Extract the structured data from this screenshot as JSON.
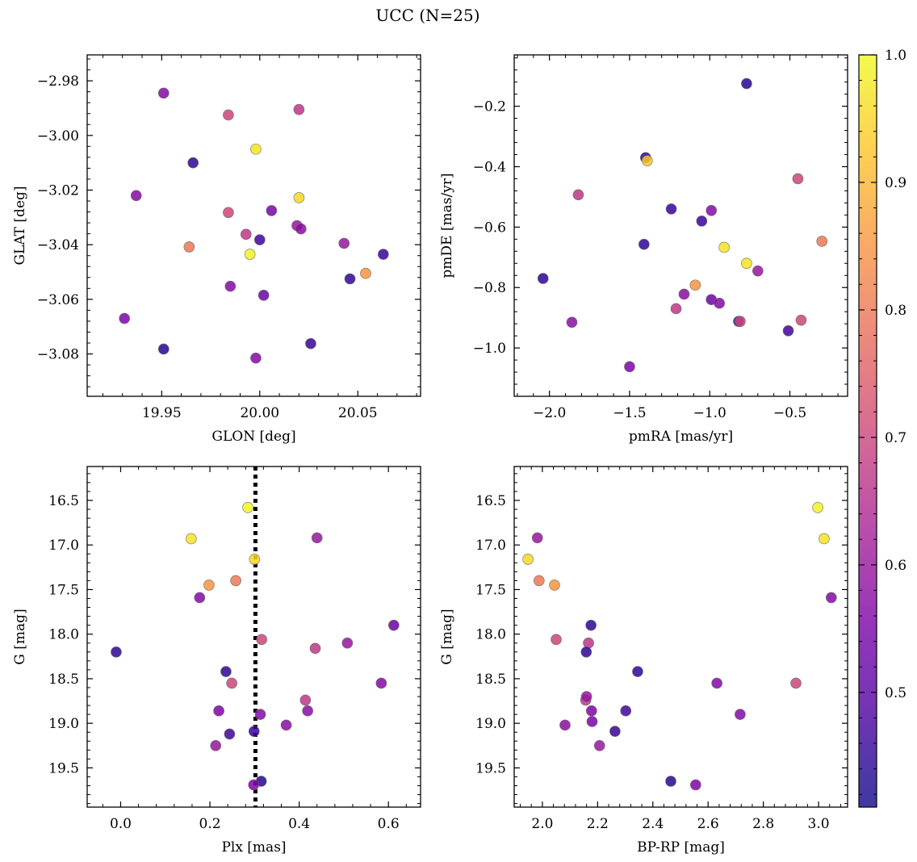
{
  "figure": {
    "title": "UCC (N=25)"
  },
  "colorbar": {
    "colormap": "plasma",
    "range": [
      0.41,
      1.0
    ],
    "tick_labels": [
      "0.5",
      "0.6",
      "0.7",
      "0.8",
      "0.9",
      "1.0"
    ],
    "ticks": [
      0.5,
      0.6,
      0.7,
      0.8,
      0.9,
      1.0
    ]
  },
  "chart_data": [
    {
      "type": "scatter",
      "xlabel": "GLON [deg]",
      "ylabel": "GLAT [deg]",
      "xlim": [
        19.912,
        20.082
      ],
      "ylim": [
        -3.0955,
        -2.9705
      ],
      "y_inverted": false,
      "xticks": [
        19.95,
        20.0,
        20.05
      ],
      "xtick_labels": [
        "19.95",
        "20.00",
        "20.05"
      ],
      "yticks": [
        -3.08,
        -3.06,
        -3.04,
        -3.02,
        -3.0,
        -2.98
      ],
      "ytick_labels": [
        "−3.08",
        "−3.06",
        "−3.04",
        "−3.02",
        "−3.00",
        "−2.98"
      ],
      "points": [
        {
          "x": 19.951,
          "y": -2.9845,
          "c": 0.57
        },
        {
          "x": 19.984,
          "y": -2.9925,
          "c": 0.7
        },
        {
          "x": 20.02,
          "y": -2.9905,
          "c": 0.67
        },
        {
          "x": 19.998,
          "y": -3.005,
          "c": 0.97
        },
        {
          "x": 19.966,
          "y": -3.01,
          "c": 0.45
        },
        {
          "x": 19.937,
          "y": -3.022,
          "c": 0.57
        },
        {
          "x": 20.02,
          "y": -3.0228,
          "c": 0.95
        },
        {
          "x": 20.006,
          "y": -3.0275,
          "c": 0.55
        },
        {
          "x": 19.984,
          "y": -3.0282,
          "c": 0.7
        },
        {
          "x": 20.019,
          "y": -3.033,
          "c": 0.6
        },
        {
          "x": 20.021,
          "y": -3.0342,
          "c": 0.58
        },
        {
          "x": 19.993,
          "y": -3.0362,
          "c": 0.67
        },
        {
          "x": 20.0,
          "y": -3.0382,
          "c": 0.47
        },
        {
          "x": 20.043,
          "y": -3.0395,
          "c": 0.6
        },
        {
          "x": 19.964,
          "y": -3.0408,
          "c": 0.8
        },
        {
          "x": 19.995,
          "y": -3.0435,
          "c": 0.99
        },
        {
          "x": 20.063,
          "y": -3.0435,
          "c": 0.46
        },
        {
          "x": 20.054,
          "y": -3.0505,
          "c": 0.85
        },
        {
          "x": 20.046,
          "y": -3.0525,
          "c": 0.45
        },
        {
          "x": 19.985,
          "y": -3.0552,
          "c": 0.57
        },
        {
          "x": 20.002,
          "y": -3.0585,
          "c": 0.53
        },
        {
          "x": 19.931,
          "y": -3.067,
          "c": 0.56
        },
        {
          "x": 19.951,
          "y": -3.0782,
          "c": 0.44
        },
        {
          "x": 20.026,
          "y": -3.0762,
          "c": 0.46
        },
        {
          "x": 19.998,
          "y": -3.0815,
          "c": 0.57
        }
      ]
    },
    {
      "type": "scatter",
      "xlabel": "pmRA [mas/yr]",
      "ylabel": "pmDE [mas/yr]",
      "xlim": [
        -2.22,
        -0.14
      ],
      "ylim": [
        -1.16,
        -0.03
      ],
      "y_inverted": false,
      "xticks": [
        -2.0,
        -1.5,
        -1.0,
        -0.5
      ],
      "xtick_labels": [
        "−2.0",
        "−1.5",
        "−1.0",
        "−0.5"
      ],
      "yticks": [
        -1.0,
        -0.8,
        -0.6,
        -0.4,
        -0.2
      ],
      "ytick_labels": [
        "−1.0",
        "−0.8",
        "−0.6",
        "−0.4",
        "−0.2"
      ],
      "points": [
        {
          "x": -0.77,
          "y": -0.125,
          "c": 0.44
        },
        {
          "x": -1.4,
          "y": -0.37,
          "c": 0.45
        },
        {
          "x": -1.39,
          "y": -0.38,
          "c": 0.93
        },
        {
          "x": -0.45,
          "y": -0.44,
          "c": 0.7
        },
        {
          "x": -1.82,
          "y": -0.493,
          "c": 0.67
        },
        {
          "x": -1.24,
          "y": -0.54,
          "c": 0.46
        },
        {
          "x": -0.99,
          "y": -0.545,
          "c": 0.57
        },
        {
          "x": -1.05,
          "y": -0.58,
          "c": 0.46
        },
        {
          "x": -0.3,
          "y": -0.647,
          "c": 0.8
        },
        {
          "x": -1.41,
          "y": -0.657,
          "c": 0.45
        },
        {
          "x": -0.91,
          "y": -0.667,
          "c": 0.97
        },
        {
          "x": -0.77,
          "y": -0.72,
          "c": 0.97
        },
        {
          "x": -0.7,
          "y": -0.745,
          "c": 0.6
        },
        {
          "x": -2.04,
          "y": -0.77,
          "c": 0.45
        },
        {
          "x": -1.09,
          "y": -0.792,
          "c": 0.85
        },
        {
          "x": -1.16,
          "y": -0.822,
          "c": 0.58
        },
        {
          "x": -0.99,
          "y": -0.84,
          "c": 0.53
        },
        {
          "x": -0.94,
          "y": -0.852,
          "c": 0.57
        },
        {
          "x": -1.21,
          "y": -0.87,
          "c": 0.67
        },
        {
          "x": -1.86,
          "y": -0.915,
          "c": 0.58
        },
        {
          "x": -0.82,
          "y": -0.912,
          "c": 0.45
        },
        {
          "x": -0.81,
          "y": -0.912,
          "c": 0.7
        },
        {
          "x": -0.43,
          "y": -0.908,
          "c": 0.7
        },
        {
          "x": -0.51,
          "y": -0.943,
          "c": 0.47
        },
        {
          "x": -1.5,
          "y": -1.062,
          "c": 0.56
        }
      ]
    },
    {
      "type": "scatter",
      "xlabel": "Plx [mas]",
      "ylabel": "G [mag]",
      "xlim": [
        -0.075,
        0.672
      ],
      "ylim": [
        16.12,
        19.94
      ],
      "y_inverted": true,
      "vline": {
        "x": 0.302,
        "style": "dotted"
      },
      "xticks": [
        0.0,
        0.2,
        0.4,
        0.6
      ],
      "xtick_labels": [
        "0.0",
        "0.2",
        "0.4",
        "0.6"
      ],
      "yticks": [
        16.5,
        17.0,
        17.5,
        18.0,
        18.5,
        19.0,
        19.5
      ],
      "ytick_labels": [
        "16.5",
        "17.0",
        "17.5",
        "18.0",
        "18.5",
        "19.0",
        "19.5"
      ],
      "points": [
        {
          "x": 0.285,
          "y": 16.58,
          "c": 0.99
        },
        {
          "x": 0.158,
          "y": 16.93,
          "c": 0.97
        },
        {
          "x": 0.44,
          "y": 16.92,
          "c": 0.6
        },
        {
          "x": 0.3,
          "y": 17.16,
          "c": 0.95
        },
        {
          "x": 0.198,
          "y": 17.45,
          "c": 0.85
        },
        {
          "x": 0.258,
          "y": 17.4,
          "c": 0.8
        },
        {
          "x": 0.177,
          "y": 17.59,
          "c": 0.57
        },
        {
          "x": 0.612,
          "y": 17.9,
          "c": 0.53
        },
        {
          "x": -0.01,
          "y": 18.2,
          "c": 0.45
        },
        {
          "x": 0.316,
          "y": 18.06,
          "c": 0.7
        },
        {
          "x": 0.436,
          "y": 18.16,
          "c": 0.67
        },
        {
          "x": 0.508,
          "y": 18.1,
          "c": 0.6
        },
        {
          "x": 0.236,
          "y": 18.42,
          "c": 0.45
        },
        {
          "x": 0.249,
          "y": 18.55,
          "c": 0.7
        },
        {
          "x": 0.584,
          "y": 18.55,
          "c": 0.57
        },
        {
          "x": 0.414,
          "y": 18.74,
          "c": 0.67
        },
        {
          "x": 0.22,
          "y": 18.86,
          "c": 0.56
        },
        {
          "x": 0.419,
          "y": 18.86,
          "c": 0.58
        },
        {
          "x": 0.313,
          "y": 18.9,
          "c": 0.57
        },
        {
          "x": 0.371,
          "y": 19.02,
          "c": 0.58
        },
        {
          "x": 0.244,
          "y": 19.12,
          "c": 0.47
        },
        {
          "x": 0.299,
          "y": 19.09,
          "c": 0.46
        },
        {
          "x": 0.213,
          "y": 19.25,
          "c": 0.6
        },
        {
          "x": 0.315,
          "y": 19.65,
          "c": 0.44
        },
        {
          "x": 0.298,
          "y": 19.69,
          "c": 0.56
        }
      ]
    },
    {
      "type": "scatter",
      "xlabel": "BP-RP [mag]",
      "ylabel": "G [mag]",
      "xlim": [
        1.898,
        3.105
      ],
      "ylim": [
        16.12,
        19.94
      ],
      "y_inverted": true,
      "xticks": [
        2.0,
        2.2,
        2.4,
        2.6,
        2.8,
        3.0
      ],
      "xtick_labels": [
        "2.0",
        "2.2",
        "2.4",
        "2.6",
        "2.8",
        "3.0"
      ],
      "yticks": [
        16.5,
        17.0,
        17.5,
        18.0,
        18.5,
        19.0,
        19.5
      ],
      "ytick_labels": [
        "16.5",
        "17.0",
        "17.5",
        "18.0",
        "18.5",
        "19.0",
        "19.5"
      ],
      "points": [
        {
          "x": 2.997,
          "y": 16.58,
          "c": 0.99
        },
        {
          "x": 3.02,
          "y": 16.93,
          "c": 0.97
        },
        {
          "x": 1.982,
          "y": 16.92,
          "c": 0.6
        },
        {
          "x": 1.948,
          "y": 17.16,
          "c": 0.95
        },
        {
          "x": 1.988,
          "y": 17.4,
          "c": 0.8
        },
        {
          "x": 2.044,
          "y": 17.45,
          "c": 0.85
        },
        {
          "x": 3.046,
          "y": 17.59,
          "c": 0.57
        },
        {
          "x": 2.176,
          "y": 17.9,
          "c": 0.45
        },
        {
          "x": 2.05,
          "y": 18.06,
          "c": 0.7
        },
        {
          "x": 2.167,
          "y": 18.1,
          "c": 0.67
        },
        {
          "x": 2.159,
          "y": 18.2,
          "c": 0.45
        },
        {
          "x": 2.345,
          "y": 18.42,
          "c": 0.45
        },
        {
          "x": 2.632,
          "y": 18.55,
          "c": 0.57
        },
        {
          "x": 2.918,
          "y": 18.55,
          "c": 0.7
        },
        {
          "x": 2.157,
          "y": 18.74,
          "c": 0.67
        },
        {
          "x": 2.178,
          "y": 18.86,
          "c": 0.56
        },
        {
          "x": 2.302,
          "y": 18.86,
          "c": 0.47
        },
        {
          "x": 2.716,
          "y": 18.9,
          "c": 0.57
        },
        {
          "x": 2.082,
          "y": 19.02,
          "c": 0.58
        },
        {
          "x": 2.263,
          "y": 19.09,
          "c": 0.46
        },
        {
          "x": 2.207,
          "y": 19.25,
          "c": 0.6
        },
        {
          "x": 2.465,
          "y": 19.65,
          "c": 0.44
        },
        {
          "x": 2.555,
          "y": 19.69,
          "c": 0.56
        },
        {
          "x": 2.18,
          "y": 18.98,
          "c": 0.55
        },
        {
          "x": 2.16,
          "y": 18.7,
          "c": 0.6
        }
      ]
    }
  ]
}
